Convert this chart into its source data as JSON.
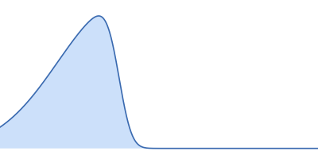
{
  "title": "",
  "fill_color": "#cce0fa",
  "line_color": "#3a6ab0",
  "line_width": 1.2,
  "background_color": "#ffffff",
  "figsize": [
    4.0,
    2.0
  ],
  "dpi": 100,
  "xlim": [
    -0.15,
    1.0
  ],
  "ylim": [
    -0.08,
    1.12
  ]
}
